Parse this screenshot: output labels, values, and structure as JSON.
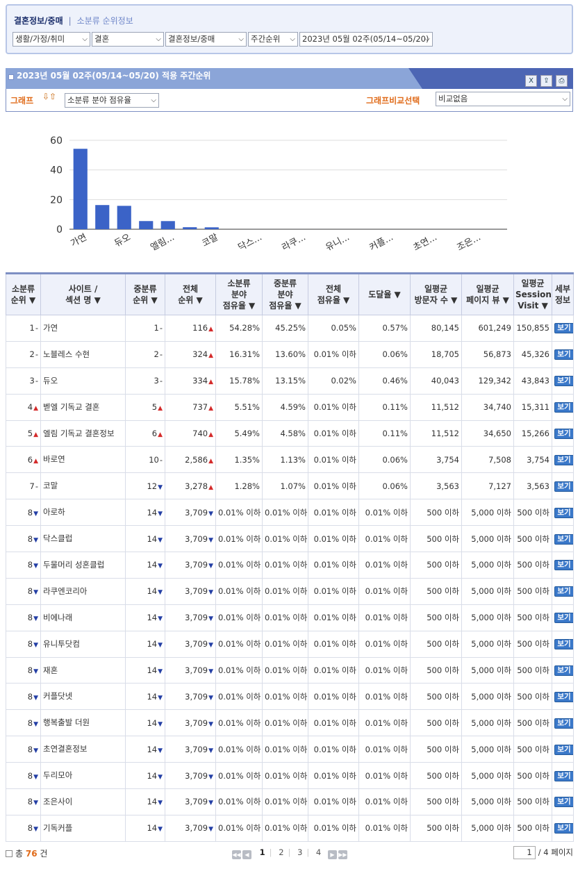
{
  "filter": {
    "title": "결혼정보/중매",
    "separator": "|",
    "subtitle": "소분류 순위정보",
    "selects": [
      "생활/가정/취미",
      "결혼",
      "결혼정보/중매",
      "주간순위",
      "2023년 05월 02주(05/14~05/20)"
    ]
  },
  "header": {
    "title": "2023년 05월 02주(05/14~05/20) 적용 주간순위",
    "tools": [
      "excel-icon",
      "export-icon",
      "print-icon"
    ]
  },
  "graph_controls": {
    "label": "그래프",
    "arrows": "⇩⇧",
    "metric_select": "소분류 분야 점유율",
    "compare_label": "그래프비교선택",
    "compare_select": "비교없음"
  },
  "chart_data": {
    "type": "bar",
    "categories": [
      "가연",
      "노블레스 수현",
      "듀오",
      "벧엘 기독교 결혼",
      "엘림 기독교 결혼정보",
      "바로연",
      "코말",
      "아로하",
      "닥스클럽",
      "두물머리 성혼클럽",
      "라쿠엔코리아",
      "비에나래",
      "유니투닷컴",
      "재혼",
      "커플닷넷",
      "행복출발 더원",
      "초연결혼정보",
      "두리모아",
      "조은사이",
      "기독커플"
    ],
    "tick_labels": [
      "가연",
      "",
      "듀오",
      "",
      "엘림...",
      "",
      "코말",
      "",
      "닥스...",
      "",
      "라쿠...",
      "",
      "유니...",
      "",
      "커플...",
      "",
      "초연...",
      "",
      "조은...",
      ""
    ],
    "values": [
      54.28,
      16.31,
      15.78,
      5.51,
      5.49,
      1.35,
      1.28,
      0.01,
      0.01,
      0.01,
      0.01,
      0.01,
      0.01,
      0.01,
      0.01,
      0.01,
      0.01,
      0.01,
      0.01,
      0.01
    ],
    "yticks": [
      0,
      20,
      40,
      60
    ],
    "ylim": [
      0,
      60
    ],
    "grid": true,
    "bar_color": "#3b63c7"
  },
  "table": {
    "headers": [
      [
        "소분류",
        "순위 ▼"
      ],
      [
        "사이트 /",
        "섹션 명 ▼"
      ],
      [
        "중분류",
        "순위 ▼"
      ],
      [
        "전체",
        "순위 ▼"
      ],
      [
        "소분류",
        "분야",
        "점유율 ▼"
      ],
      [
        "중분류",
        "분야",
        "점유율 ▼"
      ],
      [
        "전체",
        "점유율 ▼"
      ],
      [
        "도달율 ▼"
      ],
      [
        "일평균",
        "방문자 수 ▼"
      ],
      [
        "일평균",
        "페이지 뷰 ▼"
      ],
      [
        "일평균",
        "Session",
        "Visit ▼"
      ],
      [
        "세부",
        "정보"
      ]
    ],
    "view_label": "보기",
    "rows": [
      {
        "rank": "1",
        "rank_dir": "-",
        "site": "가연",
        "mid": "1",
        "mid_dir": "-",
        "total": "116",
        "total_dir": "up",
        "small_share": "54.28%",
        "mid_share": "45.25%",
        "all_share": "0.05%",
        "reach": "0.57%",
        "visitors": "80,145",
        "pv": "601,249",
        "sessions": "150,855"
      },
      {
        "rank": "2",
        "rank_dir": "-",
        "site": "노블레스 수현",
        "mid": "2",
        "mid_dir": "-",
        "total": "324",
        "total_dir": "up",
        "small_share": "16.31%",
        "mid_share": "13.60%",
        "all_share": "0.01% 이하",
        "reach": "0.06%",
        "visitors": "18,705",
        "pv": "56,873",
        "sessions": "45,326"
      },
      {
        "rank": "3",
        "rank_dir": "-",
        "site": "듀오",
        "mid": "3",
        "mid_dir": "-",
        "total": "334",
        "total_dir": "up",
        "small_share": "15.78%",
        "mid_share": "13.15%",
        "all_share": "0.02%",
        "reach": "0.46%",
        "visitors": "40,043",
        "pv": "129,342",
        "sessions": "43,843"
      },
      {
        "rank": "4",
        "rank_dir": "up",
        "site": "벧엘 기독교 결혼",
        "mid": "5",
        "mid_dir": "up",
        "total": "737",
        "total_dir": "up",
        "small_share": "5.51%",
        "mid_share": "4.59%",
        "all_share": "0.01% 이하",
        "reach": "0.11%",
        "visitors": "11,512",
        "pv": "34,740",
        "sessions": "15,311"
      },
      {
        "rank": "5",
        "rank_dir": "up",
        "site": "엘림 기독교 결혼정보",
        "mid": "6",
        "mid_dir": "up",
        "total": "740",
        "total_dir": "up",
        "small_share": "5.49%",
        "mid_share": "4.58%",
        "all_share": "0.01% 이하",
        "reach": "0.11%",
        "visitors": "11,512",
        "pv": "34,650",
        "sessions": "15,266"
      },
      {
        "rank": "6",
        "rank_dir": "up",
        "site": "바로연",
        "mid": "10",
        "mid_dir": "-",
        "total": "2,586",
        "total_dir": "up",
        "small_share": "1.35%",
        "mid_share": "1.13%",
        "all_share": "0.01% 이하",
        "reach": "0.06%",
        "visitors": "3,754",
        "pv": "7,508",
        "sessions": "3,754"
      },
      {
        "rank": "7",
        "rank_dir": "-",
        "site": "코말",
        "mid": "12",
        "mid_dir": "down",
        "total": "3,278",
        "total_dir": "up",
        "small_share": "1.28%",
        "mid_share": "1.07%",
        "all_share": "0.01% 이하",
        "reach": "0.06%",
        "visitors": "3,563",
        "pv": "7,127",
        "sessions": "3,563"
      },
      {
        "rank": "8",
        "rank_dir": "down",
        "site": "아로하",
        "mid": "14",
        "mid_dir": "down",
        "total": "3,709",
        "total_dir": "down",
        "small_share": "0.01% 이하",
        "mid_share": "0.01% 이하",
        "all_share": "0.01% 이하",
        "reach": "0.01% 이하",
        "visitors": "500 이하",
        "pv": "5,000 이하",
        "sessions": "500 이하"
      },
      {
        "rank": "8",
        "rank_dir": "down",
        "site": "닥스클럽",
        "mid": "14",
        "mid_dir": "down",
        "total": "3,709",
        "total_dir": "down",
        "small_share": "0.01% 이하",
        "mid_share": "0.01% 이하",
        "all_share": "0.01% 이하",
        "reach": "0.01% 이하",
        "visitors": "500 이하",
        "pv": "5,000 이하",
        "sessions": "500 이하"
      },
      {
        "rank": "8",
        "rank_dir": "down",
        "site": "두물머리 성혼클럽",
        "mid": "14",
        "mid_dir": "down",
        "total": "3,709",
        "total_dir": "down",
        "small_share": "0.01% 이하",
        "mid_share": "0.01% 이하",
        "all_share": "0.01% 이하",
        "reach": "0.01% 이하",
        "visitors": "500 이하",
        "pv": "5,000 이하",
        "sessions": "500 이하"
      },
      {
        "rank": "8",
        "rank_dir": "down",
        "site": "라쿠엔코리아",
        "mid": "14",
        "mid_dir": "down",
        "total": "3,709",
        "total_dir": "down",
        "small_share": "0.01% 이하",
        "mid_share": "0.01% 이하",
        "all_share": "0.01% 이하",
        "reach": "0.01% 이하",
        "visitors": "500 이하",
        "pv": "5,000 이하",
        "sessions": "500 이하"
      },
      {
        "rank": "8",
        "rank_dir": "down",
        "site": "비에나래",
        "mid": "14",
        "mid_dir": "down",
        "total": "3,709",
        "total_dir": "down",
        "small_share": "0.01% 이하",
        "mid_share": "0.01% 이하",
        "all_share": "0.01% 이하",
        "reach": "0.01% 이하",
        "visitors": "500 이하",
        "pv": "5,000 이하",
        "sessions": "500 이하"
      },
      {
        "rank": "8",
        "rank_dir": "down",
        "site": "유니투닷컴",
        "mid": "14",
        "mid_dir": "down",
        "total": "3,709",
        "total_dir": "down",
        "small_share": "0.01% 이하",
        "mid_share": "0.01% 이하",
        "all_share": "0.01% 이하",
        "reach": "0.01% 이하",
        "visitors": "500 이하",
        "pv": "5,000 이하",
        "sessions": "500 이하"
      },
      {
        "rank": "8",
        "rank_dir": "down",
        "site": "재혼",
        "mid": "14",
        "mid_dir": "down",
        "total": "3,709",
        "total_dir": "down",
        "small_share": "0.01% 이하",
        "mid_share": "0.01% 이하",
        "all_share": "0.01% 이하",
        "reach": "0.01% 이하",
        "visitors": "500 이하",
        "pv": "5,000 이하",
        "sessions": "500 이하"
      },
      {
        "rank": "8",
        "rank_dir": "down",
        "site": "커플닷넷",
        "mid": "14",
        "mid_dir": "down",
        "total": "3,709",
        "total_dir": "down",
        "small_share": "0.01% 이하",
        "mid_share": "0.01% 이하",
        "all_share": "0.01% 이하",
        "reach": "0.01% 이하",
        "visitors": "500 이하",
        "pv": "5,000 이하",
        "sessions": "500 이하"
      },
      {
        "rank": "8",
        "rank_dir": "down",
        "site": "행복출발 더원",
        "mid": "14",
        "mid_dir": "down",
        "total": "3,709",
        "total_dir": "down",
        "small_share": "0.01% 이하",
        "mid_share": "0.01% 이하",
        "all_share": "0.01% 이하",
        "reach": "0.01% 이하",
        "visitors": "500 이하",
        "pv": "5,000 이하",
        "sessions": "500 이하"
      },
      {
        "rank": "8",
        "rank_dir": "down",
        "site": "초연결혼정보",
        "mid": "14",
        "mid_dir": "down",
        "total": "3,709",
        "total_dir": "down",
        "small_share": "0.01% 이하",
        "mid_share": "0.01% 이하",
        "all_share": "0.01% 이하",
        "reach": "0.01% 이하",
        "visitors": "500 이하",
        "pv": "5,000 이하",
        "sessions": "500 이하"
      },
      {
        "rank": "8",
        "rank_dir": "down",
        "site": "두리모아",
        "mid": "14",
        "mid_dir": "down",
        "total": "3,709",
        "total_dir": "down",
        "small_share": "0.01% 이하",
        "mid_share": "0.01% 이하",
        "all_share": "0.01% 이하",
        "reach": "0.01% 이하",
        "visitors": "500 이하",
        "pv": "5,000 이하",
        "sessions": "500 이하"
      },
      {
        "rank": "8",
        "rank_dir": "down",
        "site": "조은사이",
        "mid": "14",
        "mid_dir": "down",
        "total": "3,709",
        "total_dir": "down",
        "small_share": "0.01% 이하",
        "mid_share": "0.01% 이하",
        "all_share": "0.01% 이하",
        "reach": "0.01% 이하",
        "visitors": "500 이하",
        "pv": "5,000 이하",
        "sessions": "500 이하"
      },
      {
        "rank": "8",
        "rank_dir": "down",
        "site": "기독커플",
        "mid": "14",
        "mid_dir": "down",
        "total": "3,709",
        "total_dir": "down",
        "small_share": "0.01% 이하",
        "mid_share": "0.01% 이하",
        "all_share": "0.01% 이하",
        "reach": "0.01% 이하",
        "visitors": "500 이하",
        "pv": "5,000 이하",
        "sessions": "500 이하"
      }
    ]
  },
  "footer": {
    "total_prefix": "총",
    "total_count": "76",
    "total_suffix": "건",
    "pages": [
      "1",
      "2",
      "3",
      "4"
    ],
    "current_page": "1",
    "page_input": "1",
    "page_total": "/ 4 페이지"
  }
}
